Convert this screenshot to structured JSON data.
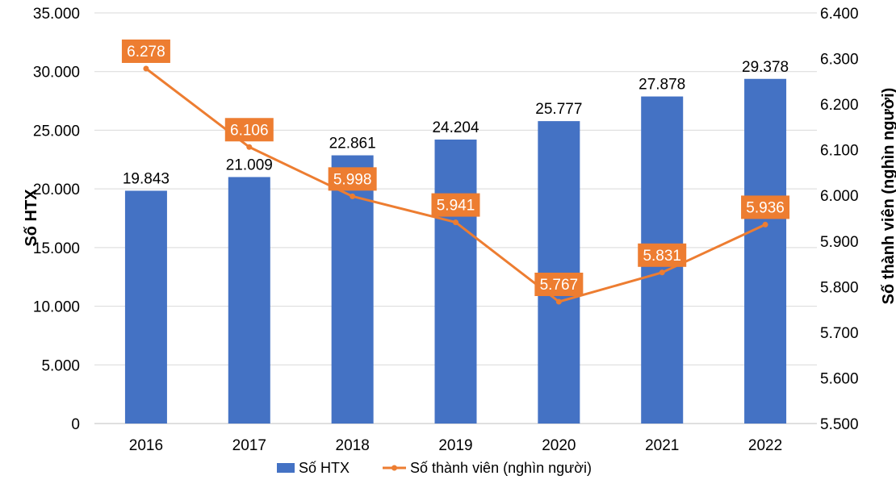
{
  "chart_data": {
    "type": "bar+line",
    "categories": [
      "2016",
      "2017",
      "2018",
      "2019",
      "2020",
      "2021",
      "2022"
    ],
    "series": [
      {
        "name": "Số HTX",
        "type": "bar",
        "axis": "left",
        "color": "#4472C4",
        "values": [
          19843,
          21009,
          22861,
          24204,
          25777,
          27878,
          29378
        ],
        "labels": [
          "19.843",
          "21.009",
          "22.861",
          "24.204",
          "25.777",
          "27.878",
          "29.378"
        ]
      },
      {
        "name": "Số thành viên (nghìn người)",
        "type": "line",
        "axis": "right",
        "color": "#ED7D31",
        "values": [
          6278,
          6106,
          5998,
          5941,
          5767,
          5831,
          5936
        ],
        "labels": [
          "6.278",
          "6.106",
          "5.998",
          "5.941",
          "5.767",
          "5.831",
          "5.936"
        ]
      }
    ],
    "y_left": {
      "label": "Số HTX",
      "lim": [
        0,
        35000
      ],
      "ticks": [
        0,
        5000,
        10000,
        15000,
        20000,
        25000,
        30000,
        35000
      ],
      "tick_labels": [
        "0",
        "5.000",
        "10.000",
        "15.000",
        "20.000",
        "25.000",
        "30.000",
        "35.000"
      ]
    },
    "y_right": {
      "label": "Số thành viên (nghìn người)",
      "lim": [
        5500,
        6400
      ],
      "ticks": [
        5500,
        5600,
        5700,
        5800,
        5900,
        6000,
        6100,
        6200,
        6300,
        6400
      ],
      "tick_labels": [
        "5.500",
        "5.600",
        "5.700",
        "5.800",
        "5.900",
        "6.000",
        "6.100",
        "6.200",
        "6.300",
        "6.400"
      ]
    },
    "grid": true,
    "legend": "bottom"
  }
}
